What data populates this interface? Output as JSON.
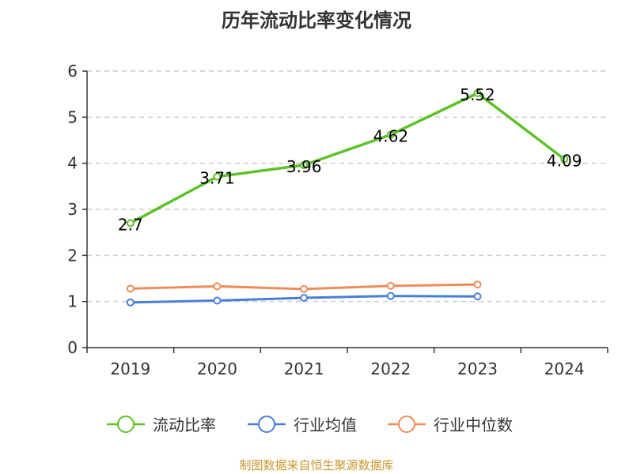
{
  "title": "历年流动比率变化情况",
  "footer": "制图数据来自恒生聚源数据库",
  "chart_data": {
    "type": "line",
    "categories": [
      "2019",
      "2020",
      "2021",
      "2022",
      "2023",
      "2024"
    ],
    "ylim": [
      0,
      6
    ],
    "yticks": [
      0,
      1,
      2,
      3,
      4,
      5,
      6
    ],
    "grid": true,
    "legend_position": "bottom",
    "series": [
      {
        "name": "流动比率",
        "color": "#5cc226",
        "values": [
          2.7,
          3.71,
          3.96,
          4.62,
          5.52,
          4.09
        ],
        "labels": [
          "2.7",
          "3.71",
          "3.96",
          "4.62",
          "5.52",
          "4.09"
        ]
      },
      {
        "name": "行业均值",
        "color": "#4a7fd8",
        "values": [
          0.98,
          1.02,
          1.08,
          1.12,
          1.11,
          null
        ]
      },
      {
        "name": "行业中位数",
        "color": "#f08c5a",
        "values": [
          1.28,
          1.33,
          1.27,
          1.34,
          1.37,
          null
        ]
      }
    ]
  }
}
